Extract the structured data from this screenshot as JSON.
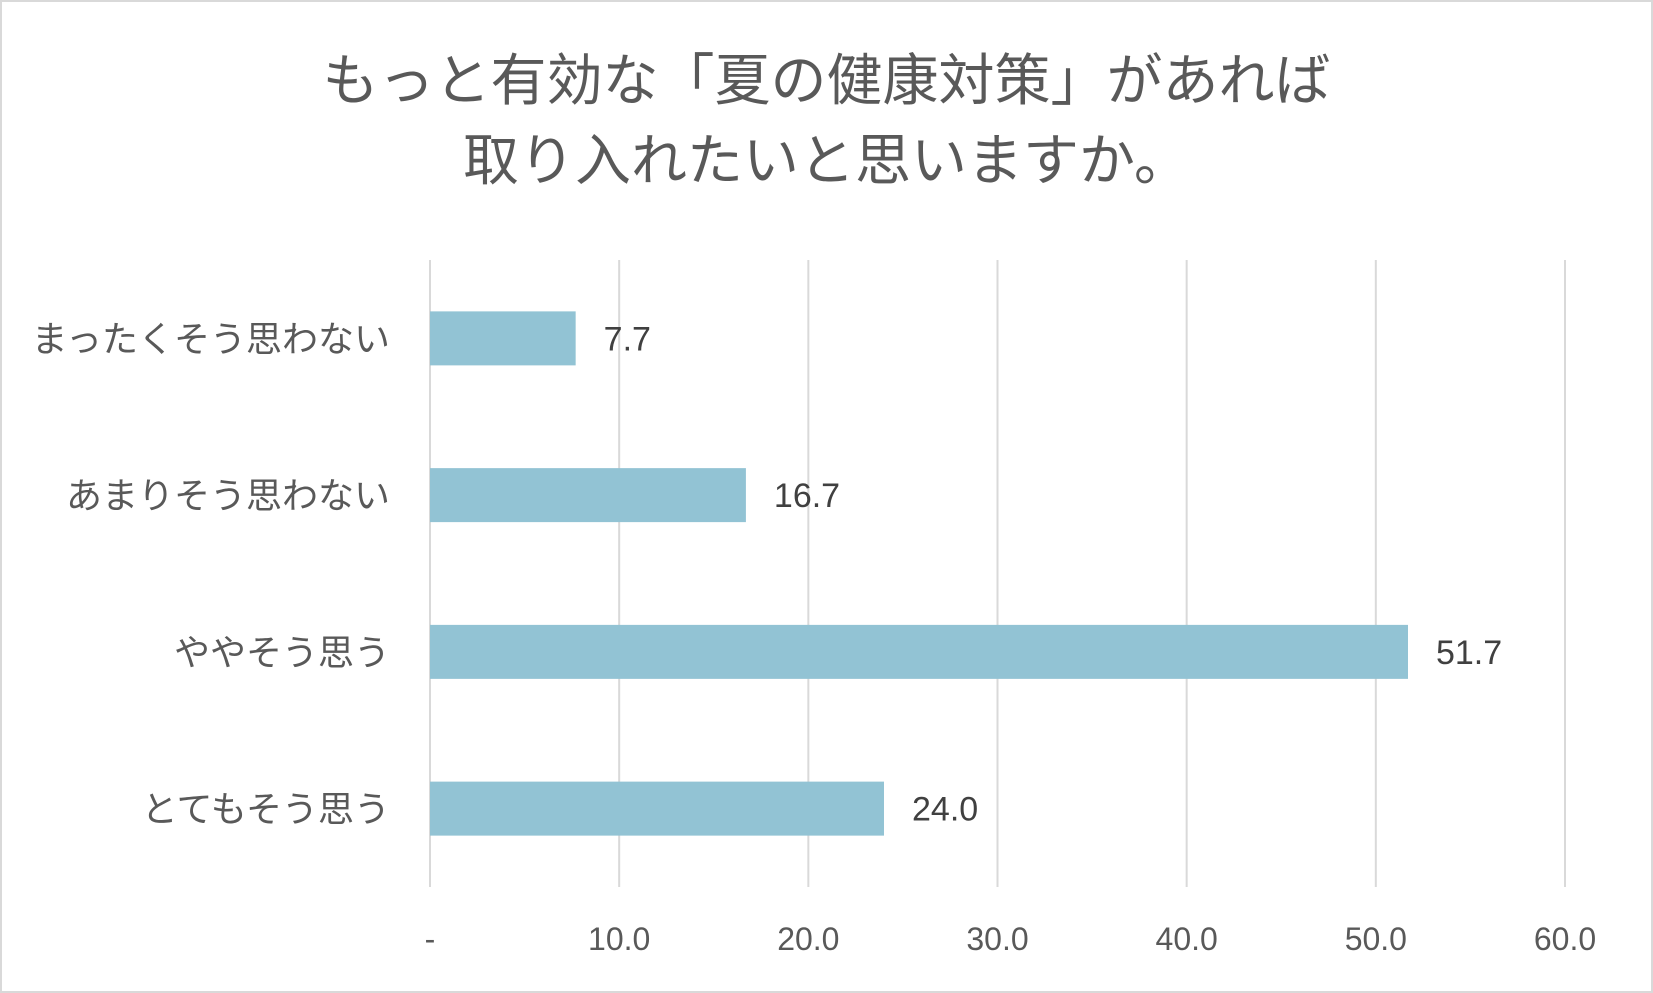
{
  "chart_data": {
    "type": "bar",
    "orientation": "horizontal",
    "title_lines": [
      "もっと有効な「夏の健康対策」があれば",
      "取り入れたいと思いますか。"
    ],
    "categories": [
      "まったくそう思わない",
      "あまりそう思わない",
      "ややそう思う",
      "とてもそう思う"
    ],
    "values": [
      7.7,
      16.7,
      51.7,
      24.0
    ],
    "data_labels": [
      "7.7",
      "16.7",
      "51.7",
      "24.0"
    ],
    "x_ticks": [
      "-",
      "10.0",
      "20.0",
      "30.0",
      "40.0",
      "50.0",
      "60.0"
    ],
    "xlim": [
      0,
      60
    ],
    "grid": true,
    "colors": {
      "bar": "#92c3d4",
      "grid": "#d9d9d9",
      "text": "#595959"
    }
  }
}
